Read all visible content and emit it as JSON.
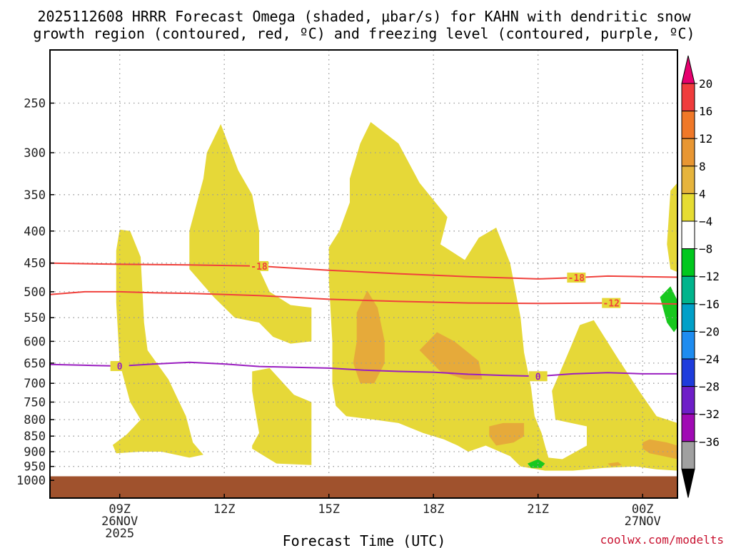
{
  "chart_data": {
    "type": "heatmap",
    "title_line1": "2025112608 HRRR Forecast Omega (shaded, μbar/s) for KAHN with dendritic snow",
    "title_line2": "growth region (contoured, red, ºC) and freezing level (contoured, purple, ºC)",
    "xlabel": "Forecast Time (UTC)",
    "credit": "coolwx.com/modelts",
    "x_range_hours": [
      7.0,
      25.0
    ],
    "y_range_hPa": [
      1030,
      200
    ],
    "y_ticks": [
      250,
      300,
      350,
      400,
      450,
      500,
      550,
      600,
      650,
      700,
      750,
      800,
      850,
      900,
      950,
      1000
    ],
    "x_ticks": [
      {
        "hour": 9,
        "label": "09Z",
        "line2": "26NOV",
        "line3": "2025"
      },
      {
        "hour": 12,
        "label": "12Z",
        "line2": "",
        "line3": ""
      },
      {
        "hour": 15,
        "label": "15Z",
        "line2": "",
        "line3": ""
      },
      {
        "hour": 18,
        "label": "18Z",
        "line2": "",
        "line3": ""
      },
      {
        "hour": 21,
        "label": "21Z",
        "line2": "",
        "line3": ""
      },
      {
        "hour": 24,
        "label": "00Z",
        "line2": "27NOV",
        "line3": ""
      }
    ],
    "ground_top_hPa": 985,
    "colorbar": {
      "labels": [
        "20",
        "16",
        "12",
        "8",
        "4",
        "−4",
        "−8",
        "−12",
        "−16",
        "−20",
        "−24",
        "−28",
        "−32",
        "−36"
      ],
      "colors": [
        "#f03c3c",
        "#f07828",
        "#e89632",
        "#e6b43c",
        "#e6dc32",
        "#ffffff",
        "#00c81e",
        "#00b48c",
        "#00a0c8",
        "#1e8cf0",
        "#1e3cdc",
        "#6e1ec8",
        "#a00ab4",
        "#a0a0a0"
      ],
      "top_arrow_color": "#e6006e",
      "bottom_arrow_color": "#000000"
    },
    "shaded_regions": [
      {
        "category": "4 to 8",
        "color": "#e6d838",
        "points": [
          [
            8.9,
            905
          ],
          [
            8.8,
            878
          ],
          [
            9.2,
            845
          ],
          [
            9.6,
            800
          ],
          [
            9.3,
            750
          ],
          [
            9.0,
            650
          ],
          [
            8.9,
            520
          ],
          [
            8.9,
            430
          ],
          [
            9.0,
            398
          ],
          [
            9.3,
            400
          ],
          [
            9.6,
            440
          ],
          [
            9.7,
            560
          ],
          [
            9.8,
            620
          ],
          [
            10.4,
            690
          ],
          [
            10.9,
            790
          ],
          [
            11.1,
            870
          ],
          [
            11.4,
            910
          ],
          [
            11.0,
            920
          ],
          [
            10.2,
            900
          ],
          [
            9.6,
            900
          ]
        ]
      },
      {
        "category": "4 to 8",
        "color": "#e6d838",
        "points": [
          [
            11.0,
            400
          ],
          [
            11.4,
            330
          ],
          [
            11.5,
            300
          ],
          [
            11.9,
            270
          ],
          [
            12.4,
            320
          ],
          [
            12.8,
            350
          ],
          [
            13.0,
            400
          ],
          [
            13.0,
            460
          ],
          [
            13.3,
            500
          ],
          [
            13.9,
            525
          ],
          [
            14.5,
            530
          ],
          [
            14.5,
            600
          ],
          [
            13.9,
            605
          ],
          [
            13.4,
            590
          ],
          [
            13.0,
            560
          ],
          [
            12.3,
            550
          ],
          [
            11.7,
            510
          ],
          [
            11.0,
            460
          ]
        ]
      },
      {
        "category": "4 to 8",
        "color": "#e6d838",
        "points": [
          [
            15.0,
            425
          ],
          [
            15.3,
            400
          ],
          [
            15.6,
            360
          ],
          [
            15.6,
            330
          ],
          [
            15.9,
            290
          ],
          [
            16.2,
            268
          ],
          [
            17.0,
            290
          ],
          [
            17.6,
            335
          ],
          [
            18.4,
            380
          ],
          [
            18.2,
            420
          ],
          [
            18.9,
            445
          ],
          [
            19.3,
            410
          ],
          [
            19.8,
            395
          ],
          [
            20.2,
            450
          ],
          [
            20.5,
            550
          ],
          [
            20.6,
            625
          ],
          [
            20.8,
            710
          ],
          [
            20.9,
            790
          ],
          [
            21.1,
            840
          ],
          [
            21.2,
            880
          ],
          [
            21.3,
            920
          ],
          [
            21.7,
            925
          ],
          [
            22.4,
            880
          ],
          [
            22.4,
            820
          ],
          [
            21.5,
            800
          ],
          [
            21.4,
            720
          ],
          [
            21.9,
            620
          ],
          [
            22.2,
            565
          ],
          [
            22.6,
            555
          ],
          [
            23.3,
            640
          ],
          [
            23.9,
            720
          ],
          [
            24.4,
            790
          ],
          [
            25.0,
            810
          ],
          [
            25.0,
            965
          ],
          [
            24.4,
            960
          ],
          [
            23.8,
            950
          ],
          [
            22.9,
            955
          ],
          [
            22.0,
            965
          ],
          [
            21.2,
            965
          ],
          [
            20.5,
            950
          ],
          [
            20.2,
            915
          ],
          [
            19.5,
            880
          ],
          [
            19.0,
            900
          ],
          [
            18.7,
            880
          ],
          [
            18.3,
            860
          ],
          [
            17.7,
            840
          ],
          [
            17.0,
            810
          ],
          [
            16.3,
            800
          ],
          [
            15.5,
            790
          ],
          [
            15.2,
            760
          ],
          [
            15.1,
            700
          ],
          [
            15.1,
            600
          ],
          [
            15.0,
            480
          ]
        ]
      },
      {
        "category": "4 to 8",
        "color": "#e6d838",
        "points": [
          [
            24.7,
            420
          ],
          [
            24.8,
            345
          ],
          [
            25.0,
            335
          ],
          [
            25.0,
            465
          ],
          [
            24.8,
            460
          ]
        ]
      },
      {
        "category": "4 to 8",
        "color": "#e6d838",
        "points": [
          [
            12.8,
            670
          ],
          [
            13.3,
            662
          ],
          [
            14.0,
            730
          ],
          [
            14.5,
            750
          ],
          [
            14.5,
            890
          ],
          [
            14.5,
            945
          ],
          [
            13.5,
            940
          ],
          [
            12.8,
            890
          ],
          [
            12.8,
            880
          ],
          [
            13.0,
            840
          ],
          [
            12.9,
            780
          ],
          [
            12.8,
            720
          ]
        ]
      },
      {
        "category": "8 to 12",
        "color": "#e6aa3a",
        "points": [
          [
            15.8,
            540
          ],
          [
            16.1,
            498
          ],
          [
            16.4,
            530
          ],
          [
            16.6,
            600
          ],
          [
            16.6,
            650
          ],
          [
            16.3,
            700
          ],
          [
            15.9,
            700
          ],
          [
            15.7,
            650
          ],
          [
            15.8,
            600
          ]
        ]
      },
      {
        "category": "8 to 12",
        "color": "#e6aa3a",
        "points": [
          [
            17.6,
            620
          ],
          [
            18.1,
            580
          ],
          [
            18.6,
            600
          ],
          [
            19.3,
            645
          ],
          [
            19.4,
            690
          ],
          [
            18.9,
            690
          ],
          [
            18.2,
            670
          ]
        ]
      },
      {
        "category": "8 to 12",
        "color": "#e6aa3a",
        "points": [
          [
            19.6,
            820
          ],
          [
            20.0,
            810
          ],
          [
            20.6,
            810
          ],
          [
            20.6,
            850
          ],
          [
            20.3,
            870
          ],
          [
            19.8,
            880
          ],
          [
            19.6,
            850
          ]
        ]
      },
      {
        "category": "8 to 12",
        "color": "#e6aa3a",
        "points": [
          [
            24.0,
            870
          ],
          [
            24.2,
            860
          ],
          [
            24.7,
            870
          ],
          [
            25.0,
            880
          ],
          [
            25.0,
            925
          ],
          [
            24.6,
            915
          ],
          [
            24.2,
            905
          ],
          [
            24.0,
            890
          ]
        ]
      },
      {
        "category": "8 to 12",
        "color": "#e6aa3a",
        "points": [
          [
            23.0,
            940
          ],
          [
            23.3,
            935
          ],
          [
            23.4,
            945
          ],
          [
            23.1,
            950
          ]
        ]
      },
      {
        "category": "-8 to -4",
        "color": "#18c81e",
        "points": [
          [
            24.5,
            510
          ],
          [
            24.8,
            490
          ],
          [
            25.1,
            530
          ],
          [
            25.0,
            570
          ],
          [
            24.9,
            580
          ],
          [
            24.7,
            560
          ]
        ]
      },
      {
        "category": "-8 to -4",
        "color": "#18c81e",
        "points": [
          [
            20.7,
            940
          ],
          [
            21.0,
            925
          ],
          [
            21.2,
            940
          ],
          [
            21.1,
            955
          ],
          [
            20.8,
            955
          ]
        ]
      }
    ],
    "contours": [
      {
        "label": "-18",
        "kind": "dendritic snow growth (red)",
        "color": "#f0413c",
        "points": [
          [
            7.0,
            450
          ],
          [
            9.0,
            452
          ],
          [
            11.0,
            453
          ],
          [
            13.0,
            455
          ],
          [
            15.0,
            462
          ],
          [
            17.0,
            468
          ],
          [
            19.0,
            473
          ],
          [
            21.0,
            477
          ],
          [
            22.0,
            475
          ],
          [
            23.0,
            472
          ],
          [
            24.0,
            473
          ],
          [
            25.0,
            474
          ]
        ],
        "label_positions": [
          13.0,
          22.1
        ]
      },
      {
        "label": "-12",
        "kind": "dendritic snow growth (red)",
        "color": "#f0413c",
        "points": [
          [
            7.0,
            505
          ],
          [
            8.0,
            500
          ],
          [
            9.0,
            500
          ],
          [
            10.0,
            502
          ],
          [
            11.0,
            503
          ],
          [
            13.0,
            507
          ],
          [
            15.0,
            514
          ],
          [
            17.0,
            518
          ],
          [
            19.0,
            521
          ],
          [
            21.0,
            522
          ],
          [
            23.0,
            521
          ],
          [
            24.0,
            522
          ],
          [
            25.0,
            523
          ]
        ],
        "label_positions": [
          23.1
        ]
      },
      {
        "label": "0",
        "kind": "freezing level (purple)",
        "color": "#9a1ec0",
        "points": [
          [
            7.0,
            653
          ],
          [
            8.0,
            655
          ],
          [
            9.0,
            657
          ],
          [
            10.0,
            652
          ],
          [
            11.0,
            648
          ],
          [
            12.0,
            652
          ],
          [
            13.0,
            658
          ],
          [
            14.0,
            660
          ],
          [
            15.0,
            662
          ],
          [
            16.0,
            667
          ],
          [
            17.0,
            670
          ],
          [
            18.0,
            672
          ],
          [
            19.0,
            677
          ],
          [
            20.0,
            680
          ],
          [
            21.0,
            682
          ],
          [
            22.0,
            676
          ],
          [
            23.0,
            673
          ],
          [
            24.0,
            676
          ],
          [
            25.0,
            676
          ]
        ],
        "label_positions": [
          9.0,
          21.0
        ]
      }
    ]
  }
}
